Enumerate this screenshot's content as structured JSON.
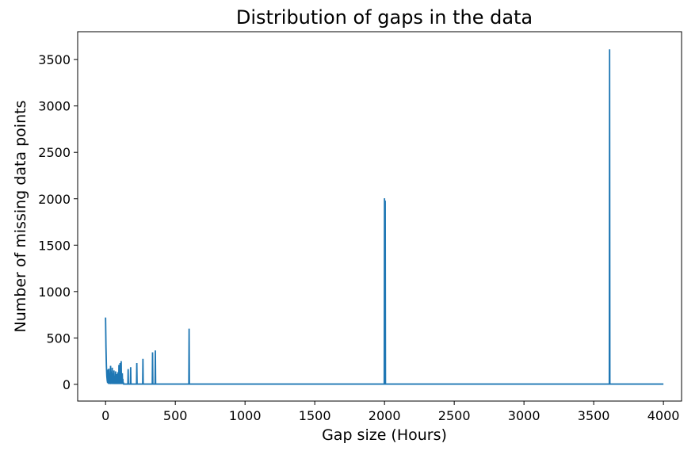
{
  "chart_data": {
    "type": "line",
    "title": "Distribution of gaps in the data",
    "xlabel": "Gap size (Hours)",
    "ylabel": "Number of missing data points",
    "xlim": [
      -200,
      4130
    ],
    "ylim": [
      -180,
      3800
    ],
    "x_ticks": [
      0,
      500,
      1000,
      1500,
      2000,
      2500,
      3000,
      3500,
      4000
    ],
    "y_ticks": [
      0,
      500,
      1000,
      1500,
      2000,
      2500,
      3000,
      3500
    ],
    "grid": false,
    "legend": "none",
    "series": [
      {
        "color": "#1f77b4",
        "x": [
          0,
          3,
          6,
          9,
          12,
          15,
          18,
          20,
          22,
          24,
          26,
          28,
          30,
          32,
          34,
          36,
          38,
          40,
          42,
          44,
          46,
          48,
          50,
          52,
          54,
          56,
          58,
          60,
          62,
          64,
          66,
          68,
          70,
          72,
          74,
          76,
          78,
          80,
          82,
          84,
          86,
          88,
          90,
          92,
          94,
          96,
          98,
          100,
          102,
          104,
          106,
          108,
          110,
          112,
          114,
          116,
          118,
          120,
          122,
          124,
          126,
          128,
          130,
          160,
          162,
          164,
          178,
          180,
          182,
          222,
          224,
          226,
          266,
          268,
          270,
          335,
          337,
          339,
          355,
          357,
          359,
          597,
          599,
          601,
          1998,
          2000,
          2002,
          2005,
          2007,
          3612,
          3614,
          3616,
          4000
        ],
        "y": [
          720,
          400,
          200,
          90,
          40,
          15,
          160,
          20,
          5,
          170,
          10,
          120,
          5,
          80,
          3,
          200,
          10,
          140,
          5,
          100,
          3,
          180,
          10,
          60,
          5,
          120,
          3,
          150,
          8,
          70,
          3,
          90,
          5,
          140,
          3,
          60,
          3,
          110,
          5,
          50,
          3,
          130,
          3,
          30,
          3,
          210,
          3,
          80,
          3,
          230,
          3,
          50,
          3,
          250,
          3,
          40,
          3,
          120,
          3,
          60,
          3,
          20,
          3,
          3,
          165,
          3,
          3,
          185,
          3,
          3,
          230,
          3,
          3,
          275,
          3,
          3,
          345,
          3,
          3,
          365,
          3,
          3,
          600,
          3,
          3,
          2005,
          3,
          1980,
          3,
          3,
          3610,
          3,
          3
        ]
      }
    ]
  }
}
